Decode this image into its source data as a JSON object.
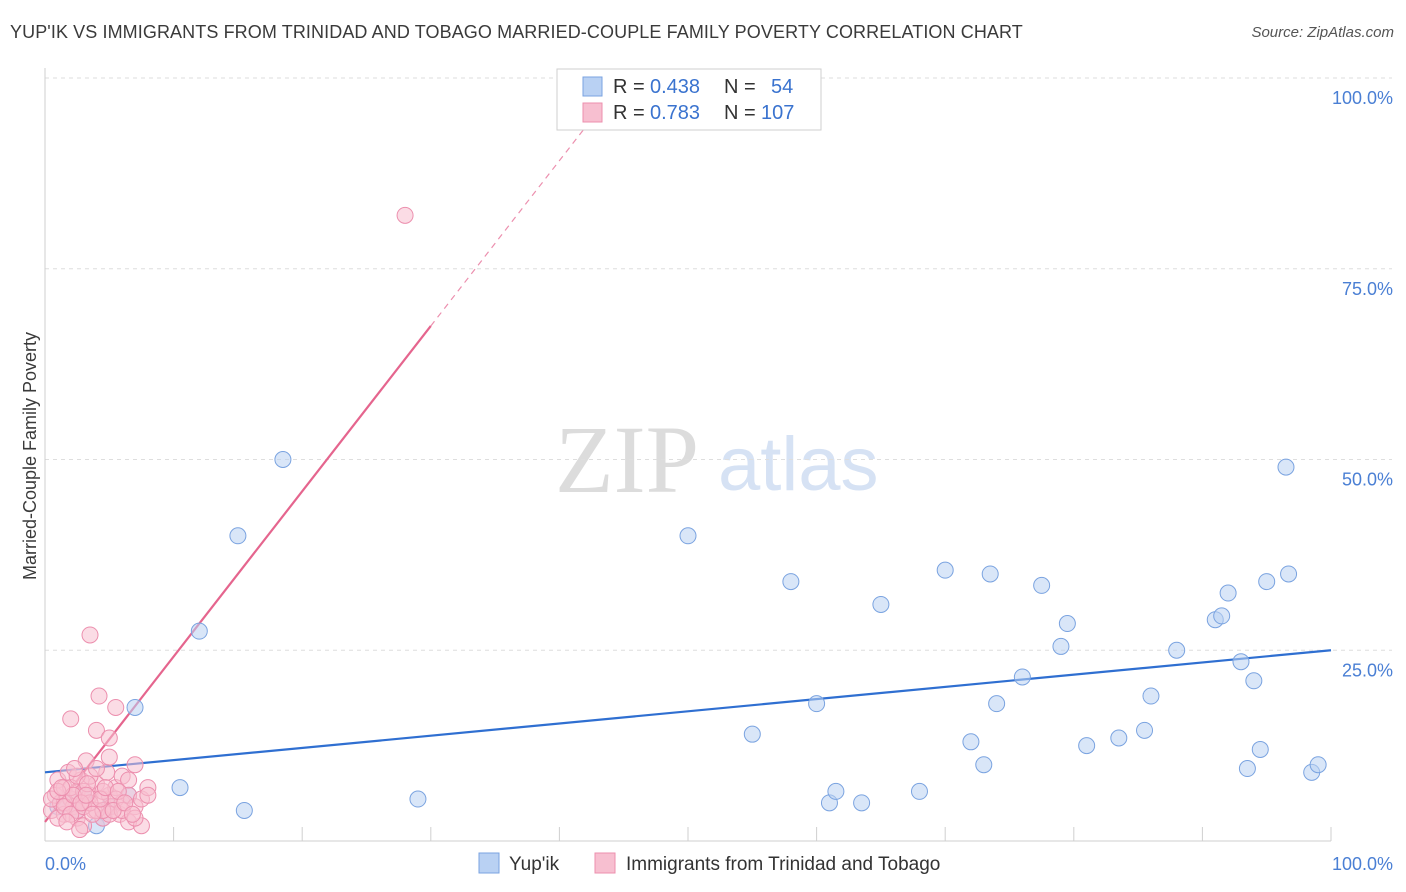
{
  "title": "YUP'IK VS IMMIGRANTS FROM TRINIDAD AND TOBAGO MARRIED-COUPLE FAMILY POVERTY CORRELATION CHART",
  "source": "Source: ZipAtlas.com",
  "watermark": {
    "zip": "ZIP",
    "atlas": "atlas"
  },
  "colors": {
    "blue_fill": "#b9d1f3",
    "blue_stroke": "#7aa3e0",
    "blue_line": "#2f6fd1",
    "pink_fill": "#f7bfd0",
    "pink_stroke": "#ec8fae",
    "pink_line": "#e5658e",
    "tick_text": "#4a7fd4"
  },
  "legend": {
    "rows": [
      {
        "r_label": "R =",
        "r_value": "0.438",
        "n_label": "N =",
        "n_value": "54"
      },
      {
        "r_label": "R =",
        "r_value": "0.783",
        "n_label": "N =",
        "n_value": "107"
      }
    ]
  },
  "bottom_legend": [
    "Yup'ik",
    "Immigrants from Trinidad and Tobago"
  ],
  "chart_data": {
    "type": "scatter",
    "title": "YUP'IK VS IMMIGRANTS FROM TRINIDAD AND TOBAGO MARRIED-COUPLE FAMILY POVERTY CORRELATION CHART",
    "xlabel": "",
    "ylabel": "Married-Couple Family Poverty",
    "xlim": [
      0,
      100
    ],
    "ylim": [
      0,
      100
    ],
    "x_tick_labels": [
      "0.0%",
      "100.0%"
    ],
    "y_tick_labels": [
      "100.0%",
      "75.0%",
      "50.0%",
      "25.0%"
    ],
    "y_ticks": [
      100,
      75,
      50,
      25
    ],
    "grid": true,
    "series": [
      {
        "name": "Yup'ik",
        "color": "#b9d1f3",
        "r": 0.438,
        "n": 54,
        "trend": {
          "x0": 0,
          "y0": 9.0,
          "x1": 100,
          "y1": 25.0
        },
        "points": [
          [
            1.0,
            4.5
          ],
          [
            2.5,
            4.0
          ],
          [
            4.0,
            2.0
          ],
          [
            5.0,
            4.5
          ],
          [
            6.5,
            6.0
          ],
          [
            7.0,
            17.5
          ],
          [
            10.5,
            7.0
          ],
          [
            12.0,
            27.5
          ],
          [
            15.0,
            40.0
          ],
          [
            15.5,
            4.0
          ],
          [
            18.5,
            50.0
          ],
          [
            29.0,
            5.5
          ],
          [
            50.0,
            40.0
          ],
          [
            55.0,
            14.0
          ],
          [
            58.0,
            34.0
          ],
          [
            60.0,
            18.0
          ],
          [
            61.0,
            5.0
          ],
          [
            61.5,
            6.5
          ],
          [
            63.5,
            5.0
          ],
          [
            65.0,
            31.0
          ],
          [
            68.0,
            6.5
          ],
          [
            70.0,
            35.5
          ],
          [
            72.0,
            13.0
          ],
          [
            73.0,
            10.0
          ],
          [
            73.5,
            35.0
          ],
          [
            74.0,
            18.0
          ],
          [
            76.0,
            21.5
          ],
          [
            77.5,
            33.5
          ],
          [
            79.0,
            25.5
          ],
          [
            79.5,
            28.5
          ],
          [
            81.0,
            12.5
          ],
          [
            83.5,
            13.5
          ],
          [
            85.5,
            14.5
          ],
          [
            86.0,
            19.0
          ],
          [
            88.0,
            25.0
          ],
          [
            91.0,
            29.0
          ],
          [
            91.5,
            29.5
          ],
          [
            92.0,
            32.5
          ],
          [
            93.0,
            23.5
          ],
          [
            93.5,
            9.5
          ],
          [
            94.0,
            21.0
          ],
          [
            94.5,
            12.0
          ],
          [
            95.0,
            34.0
          ],
          [
            96.5,
            49.0
          ],
          [
            96.7,
            35.0
          ],
          [
            98.5,
            9.0
          ],
          [
            99.0,
            10.0
          ],
          [
            3.0,
            6.0
          ],
          [
            4.5,
            3.0
          ],
          [
            2.0,
            5.5
          ]
        ]
      },
      {
        "name": "Immigrants from Trinidad and Tobago",
        "color": "#f7bfd0",
        "r": 0.783,
        "n": 107,
        "trend": {
          "x0": 0,
          "y0": 2.5,
          "x1": 30,
          "y1": 67.5,
          "dash_to": {
            "x": 42,
            "y": 93.5
          }
        },
        "points": [
          [
            0.5,
            4.0
          ],
          [
            0.8,
            6.0
          ],
          [
            1.0,
            8.0
          ],
          [
            1.2,
            5.0
          ],
          [
            1.5,
            3.5
          ],
          [
            1.5,
            7.0
          ],
          [
            1.8,
            9.0
          ],
          [
            2.0,
            5.5
          ],
          [
            2.0,
            16.0
          ],
          [
            2.2,
            4.5
          ],
          [
            2.5,
            6.5
          ],
          [
            2.5,
            3.0
          ],
          [
            2.8,
            8.0
          ],
          [
            3.0,
            5.0
          ],
          [
            3.0,
            2.0
          ],
          [
            3.2,
            10.5
          ],
          [
            3.5,
            6.0
          ],
          [
            3.5,
            27.0
          ],
          [
            3.8,
            4.0
          ],
          [
            4.0,
            7.5
          ],
          [
            4.0,
            14.5
          ],
          [
            4.2,
            19.0
          ],
          [
            4.5,
            5.5
          ],
          [
            4.5,
            3.0
          ],
          [
            4.8,
            9.0
          ],
          [
            5.0,
            6.0
          ],
          [
            5.0,
            13.5
          ],
          [
            5.2,
            4.5
          ],
          [
            5.5,
            17.5
          ],
          [
            5.5,
            7.0
          ],
          [
            5.8,
            3.5
          ],
          [
            6.0,
            5.0
          ],
          [
            6.0,
            8.5
          ],
          [
            6.5,
            6.0
          ],
          [
            6.5,
            2.5
          ],
          [
            7.0,
            4.5
          ],
          [
            7.0,
            10.0
          ],
          [
            7.5,
            5.5
          ],
          [
            7.5,
            2.0
          ],
          [
            8.0,
            7.0
          ],
          [
            8.0,
            6.0
          ],
          [
            1.0,
            3.0
          ],
          [
            1.5,
            5.0
          ],
          [
            2.0,
            7.0
          ],
          [
            2.5,
            4.0
          ],
          [
            3.0,
            6.5
          ],
          [
            3.5,
            8.5
          ],
          [
            4.0,
            4.0
          ],
          [
            4.5,
            6.5
          ],
          [
            5.0,
            3.5
          ],
          [
            5.5,
            5.5
          ],
          [
            6.0,
            4.0
          ],
          [
            6.5,
            8.0
          ],
          [
            7.0,
            3.0
          ],
          [
            0.5,
            5.5
          ],
          [
            1.0,
            6.5
          ],
          [
            1.5,
            4.5
          ],
          [
            2.0,
            3.5
          ],
          [
            2.5,
            8.5
          ],
          [
            3.0,
            4.5
          ],
          [
            3.5,
            5.0
          ],
          [
            4.0,
            9.5
          ],
          [
            4.5,
            4.0
          ],
          [
            5.0,
            11.0
          ],
          [
            28.0,
            82.0
          ],
          [
            2.2,
            6.0
          ],
          [
            2.8,
            5.0
          ],
          [
            3.3,
            7.5
          ],
          [
            3.7,
            3.5
          ],
          [
            4.3,
            5.5
          ],
          [
            4.7,
            7.0
          ],
          [
            5.3,
            4.0
          ],
          [
            5.7,
            6.5
          ],
          [
            6.2,
            5.0
          ],
          [
            6.8,
            3.5
          ],
          [
            1.3,
            7.0
          ],
          [
            1.7,
            2.5
          ],
          [
            2.3,
            9.5
          ],
          [
            2.7,
            1.5
          ],
          [
            3.2,
            6.0
          ]
        ]
      }
    ]
  }
}
